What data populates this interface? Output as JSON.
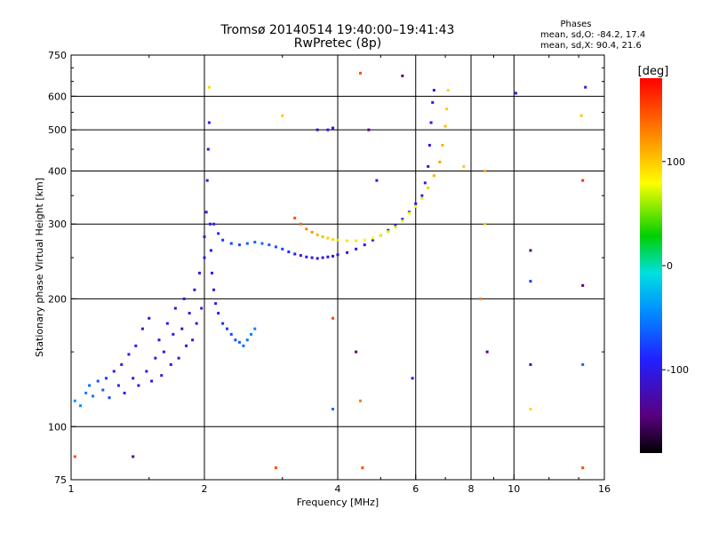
{
  "header": {
    "title_line1": "Tromsø 20140514 19:40:00–19:41:43",
    "title_line2": "RwPretec (8p)",
    "stats_title": "Phases",
    "stats_o": "mean, sd,O: -84.2, 17.4",
    "stats_x": "mean, sd,X: 90.4, 21.6"
  },
  "colorbar": {
    "label": "[deg]",
    "ticks": [
      {
        "value": 100,
        "label": "100"
      },
      {
        "value": 0,
        "label": "0"
      },
      {
        "value": -100,
        "label": "-100"
      }
    ],
    "range": [
      -180,
      180
    ]
  },
  "chart_data": {
    "type": "scatter",
    "title": "Tromsø 20140514 19:40:00–19:41:43",
    "subtitle": "RwPretec (8p)",
    "xlabel": "Frequency [MHz]",
    "ylabel": "Stationary phase Virtual Height [km]",
    "xscale": "log",
    "yscale": "log",
    "xlim": [
      1,
      16
    ],
    "ylim": [
      75,
      750
    ],
    "xticks": [
      {
        "value": 1,
        "label": "1"
      },
      {
        "value": 2,
        "label": "2"
      },
      {
        "value": 4,
        "label": "4"
      },
      {
        "value": 6,
        "label": "6"
      },
      {
        "value": 8,
        "label": "8"
      },
      {
        "value": 10,
        "label": "10"
      },
      {
        "value": 16,
        "label": "16"
      }
    ],
    "yticks": [
      {
        "value": 75,
        "label": "75"
      },
      {
        "value": 100,
        "label": "100"
      },
      {
        "value": 200,
        "label": "200"
      },
      {
        "value": 300,
        "label": "300"
      },
      {
        "value": 400,
        "label": "400"
      },
      {
        "value": 500,
        "label": "500"
      },
      {
        "value": 600,
        "label": "600"
      },
      {
        "value": 750,
        "label": "750"
      }
    ],
    "grid_x": [
      2,
      4,
      6,
      8,
      10
    ],
    "grid_y": [
      100,
      200,
      300,
      400,
      500,
      600
    ],
    "grid": true,
    "colorscale": "rainbow",
    "color_variable": "phase [deg]",
    "points": [
      {
        "x": 1.02,
        "y": 115,
        "c": -40
      },
      {
        "x": 1.05,
        "y": 112,
        "c": -45
      },
      {
        "x": 1.08,
        "y": 120,
        "c": -50
      },
      {
        "x": 1.1,
        "y": 125,
        "c": -60
      },
      {
        "x": 1.12,
        "y": 118,
        "c": -55
      },
      {
        "x": 1.15,
        "y": 128,
        "c": -70
      },
      {
        "x": 1.18,
        "y": 122,
        "c": -65
      },
      {
        "x": 1.2,
        "y": 130,
        "c": -80
      },
      {
        "x": 1.22,
        "y": 117,
        "c": -75
      },
      {
        "x": 1.25,
        "y": 135,
        "c": -90
      },
      {
        "x": 1.28,
        "y": 125,
        "c": -85
      },
      {
        "x": 1.3,
        "y": 140,
        "c": -95
      },
      {
        "x": 1.32,
        "y": 120,
        "c": -90
      },
      {
        "x": 1.35,
        "y": 148,
        "c": -100
      },
      {
        "x": 1.38,
        "y": 130,
        "c": -95
      },
      {
        "x": 1.4,
        "y": 155,
        "c": -100
      },
      {
        "x": 1.42,
        "y": 125,
        "c": -100
      },
      {
        "x": 1.45,
        "y": 170,
        "c": -105
      },
      {
        "x": 1.48,
        "y": 135,
        "c": -100
      },
      {
        "x": 1.5,
        "y": 180,
        "c": -105
      },
      {
        "x": 1.52,
        "y": 128,
        "c": -100
      },
      {
        "x": 1.55,
        "y": 145,
        "c": -100
      },
      {
        "x": 1.58,
        "y": 160,
        "c": -105
      },
      {
        "x": 1.6,
        "y": 132,
        "c": -100
      },
      {
        "x": 1.62,
        "y": 150,
        "c": -105
      },
      {
        "x": 1.65,
        "y": 175,
        "c": -100
      },
      {
        "x": 1.68,
        "y": 140,
        "c": -105
      },
      {
        "x": 1.7,
        "y": 165,
        "c": -100
      },
      {
        "x": 1.72,
        "y": 190,
        "c": -105
      },
      {
        "x": 1.75,
        "y": 145,
        "c": -100
      },
      {
        "x": 1.78,
        "y": 170,
        "c": -105
      },
      {
        "x": 1.8,
        "y": 200,
        "c": -100
      },
      {
        "x": 1.82,
        "y": 155,
        "c": -105
      },
      {
        "x": 1.85,
        "y": 185,
        "c": -100
      },
      {
        "x": 1.88,
        "y": 160,
        "c": -105
      },
      {
        "x": 1.9,
        "y": 210,
        "c": -100
      },
      {
        "x": 1.92,
        "y": 175,
        "c": -105
      },
      {
        "x": 1.95,
        "y": 230,
        "c": -100
      },
      {
        "x": 1.97,
        "y": 190,
        "c": -105
      },
      {
        "x": 2.0,
        "y": 250,
        "c": -100
      },
      {
        "x": 2.0,
        "y": 280,
        "c": -105
      },
      {
        "x": 2.02,
        "y": 320,
        "c": -100
      },
      {
        "x": 2.03,
        "y": 380,
        "c": -105
      },
      {
        "x": 2.04,
        "y": 450,
        "c": -100
      },
      {
        "x": 2.05,
        "y": 520,
        "c": -95
      },
      {
        "x": 2.06,
        "y": 300,
        "c": -100
      },
      {
        "x": 2.07,
        "y": 260,
        "c": -105
      },
      {
        "x": 2.08,
        "y": 230,
        "c": -100
      },
      {
        "x": 2.1,
        "y": 210,
        "c": -100
      },
      {
        "x": 2.12,
        "y": 195,
        "c": -100
      },
      {
        "x": 2.15,
        "y": 185,
        "c": -90
      },
      {
        "x": 2.2,
        "y": 175,
        "c": -85
      },
      {
        "x": 2.25,
        "y": 170,
        "c": -80
      },
      {
        "x": 2.3,
        "y": 165,
        "c": -75
      },
      {
        "x": 2.35,
        "y": 160,
        "c": -70
      },
      {
        "x": 2.4,
        "y": 158,
        "c": -65
      },
      {
        "x": 2.45,
        "y": 155,
        "c": -60
      },
      {
        "x": 2.5,
        "y": 160,
        "c": -55
      },
      {
        "x": 2.55,
        "y": 165,
        "c": -50
      },
      {
        "x": 2.6,
        "y": 170,
        "c": -50
      },
      {
        "x": 2.1,
        "y": 300,
        "c": -90
      },
      {
        "x": 2.15,
        "y": 285,
        "c": -85
      },
      {
        "x": 2.2,
        "y": 275,
        "c": -80
      },
      {
        "x": 2.3,
        "y": 270,
        "c": -75
      },
      {
        "x": 2.4,
        "y": 268,
        "c": -70
      },
      {
        "x": 2.5,
        "y": 270,
        "c": -65
      },
      {
        "x": 2.6,
        "y": 272,
        "c": -60
      },
      {
        "x": 2.7,
        "y": 270,
        "c": -60
      },
      {
        "x": 2.8,
        "y": 268,
        "c": -65
      },
      {
        "x": 2.9,
        "y": 265,
        "c": -70
      },
      {
        "x": 3.0,
        "y": 262,
        "c": -75
      },
      {
        "x": 3.1,
        "y": 258,
        "c": -85
      },
      {
        "x": 3.2,
        "y": 255,
        "c": -95
      },
      {
        "x": 3.3,
        "y": 253,
        "c": -100
      },
      {
        "x": 3.4,
        "y": 251,
        "c": -105
      },
      {
        "x": 3.5,
        "y": 250,
        "c": -110
      },
      {
        "x": 3.6,
        "y": 249,
        "c": -110
      },
      {
        "x": 3.7,
        "y": 250,
        "c": -110
      },
      {
        "x": 3.8,
        "y": 251,
        "c": -110
      },
      {
        "x": 3.9,
        "y": 252,
        "c": -110
      },
      {
        "x": 4.0,
        "y": 254,
        "c": -110
      },
      {
        "x": 4.2,
        "y": 257,
        "c": -110
      },
      {
        "x": 4.4,
        "y": 262,
        "c": -108
      },
      {
        "x": 4.6,
        "y": 268,
        "c": -105
      },
      {
        "x": 4.8,
        "y": 275,
        "c": -100
      },
      {
        "x": 5.0,
        "y": 282,
        "c": -100
      },
      {
        "x": 5.2,
        "y": 290,
        "c": -100
      },
      {
        "x": 5.4,
        "y": 298,
        "c": -100
      },
      {
        "x": 5.6,
        "y": 308,
        "c": -100
      },
      {
        "x": 5.8,
        "y": 320,
        "c": -100
      },
      {
        "x": 6.0,
        "y": 335,
        "c": -100
      },
      {
        "x": 6.2,
        "y": 350,
        "c": -100
      },
      {
        "x": 6.3,
        "y": 375,
        "c": -100
      },
      {
        "x": 6.4,
        "y": 410,
        "c": -100
      },
      {
        "x": 6.45,
        "y": 460,
        "c": -100
      },
      {
        "x": 6.5,
        "y": 520,
        "c": -100
      },
      {
        "x": 6.55,
        "y": 580,
        "c": -100
      },
      {
        "x": 6.6,
        "y": 620,
        "c": -100
      },
      {
        "x": 3.2,
        "y": 310,
        "c": 150
      },
      {
        "x": 3.3,
        "y": 300,
        "c": 140
      },
      {
        "x": 3.4,
        "y": 292,
        "c": 130
      },
      {
        "x": 3.5,
        "y": 287,
        "c": 120
      },
      {
        "x": 3.6,
        "y": 283,
        "c": 110
      },
      {
        "x": 3.7,
        "y": 280,
        "c": 105
      },
      {
        "x": 3.8,
        "y": 278,
        "c": 100
      },
      {
        "x": 3.9,
        "y": 276,
        "c": 95
      },
      {
        "x": 4.0,
        "y": 275,
        "c": 95
      },
      {
        "x": 4.2,
        "y": 274,
        "c": 90
      },
      {
        "x": 4.4,
        "y": 274,
        "c": 90
      },
      {
        "x": 4.6,
        "y": 275,
        "c": 85
      },
      {
        "x": 4.8,
        "y": 278,
        "c": 80
      },
      {
        "x": 5.0,
        "y": 282,
        "c": 75
      },
      {
        "x": 5.2,
        "y": 288,
        "c": 70
      },
      {
        "x": 5.4,
        "y": 295,
        "c": 70
      },
      {
        "x": 5.6,
        "y": 305,
        "c": 75
      },
      {
        "x": 5.8,
        "y": 318,
        "c": 80
      },
      {
        "x": 6.0,
        "y": 330,
        "c": 85
      },
      {
        "x": 6.2,
        "y": 345,
        "c": 90
      },
      {
        "x": 6.4,
        "y": 365,
        "c": 100
      },
      {
        "x": 6.6,
        "y": 390,
        "c": 110
      },
      {
        "x": 6.8,
        "y": 420,
        "c": 115
      },
      {
        "x": 6.9,
        "y": 460,
        "c": 110
      },
      {
        "x": 7.0,
        "y": 510,
        "c": 105
      },
      {
        "x": 7.05,
        "y": 560,
        "c": 100
      },
      {
        "x": 7.1,
        "y": 620,
        "c": 95
      },
      {
        "x": 1.02,
        "y": 85,
        "c": 150
      },
      {
        "x": 1.38,
        "y": 85,
        "c": -140
      },
      {
        "x": 2.9,
        "y": 80,
        "c": 150
      },
      {
        "x": 4.55,
        "y": 80,
        "c": 150
      },
      {
        "x": 2.05,
        "y": 630,
        "c": 95
      },
      {
        "x": 3.0,
        "y": 540,
        "c": 100
      },
      {
        "x": 4.5,
        "y": 680,
        "c": 150
      },
      {
        "x": 5.6,
        "y": 670,
        "c": -140
      },
      {
        "x": 10.1,
        "y": 610,
        "c": -100
      },
      {
        "x": 10.9,
        "y": 260,
        "c": -140
      },
      {
        "x": 10.9,
        "y": 220,
        "c": -80
      },
      {
        "x": 10.9,
        "y": 140,
        "c": -120
      },
      {
        "x": 10.9,
        "y": 110,
        "c": 95
      },
      {
        "x": 14.5,
        "y": 630,
        "c": -100
      },
      {
        "x": 14.2,
        "y": 540,
        "c": 100
      },
      {
        "x": 14.3,
        "y": 380,
        "c": 160
      },
      {
        "x": 14.3,
        "y": 215,
        "c": -140
      },
      {
        "x": 14.3,
        "y": 140,
        "c": -60
      },
      {
        "x": 14.3,
        "y": 80,
        "c": 150
      },
      {
        "x": 8.4,
        "y": 200,
        "c": 130
      },
      {
        "x": 8.7,
        "y": 150,
        "c": -140
      },
      {
        "x": 3.9,
        "y": 180,
        "c": 150
      },
      {
        "x": 4.4,
        "y": 150,
        "c": -140
      },
      {
        "x": 3.9,
        "y": 110,
        "c": -60
      },
      {
        "x": 4.5,
        "y": 115,
        "c": 130
      },
      {
        "x": 5.9,
        "y": 130,
        "c": -100
      },
      {
        "x": 4.9,
        "y": 380,
        "c": -100
      },
      {
        "x": 4.7,
        "y": 500,
        "c": -140
      },
      {
        "x": 3.6,
        "y": 500,
        "c": -110
      },
      {
        "x": 3.8,
        "y": 500,
        "c": -110
      },
      {
        "x": 3.9,
        "y": 505,
        "c": -110
      },
      {
        "x": 8.6,
        "y": 400,
        "c": 110
      },
      {
        "x": 7.7,
        "y": 410,
        "c": 100
      },
      {
        "x": 8.6,
        "y": 300,
        "c": 100
      }
    ]
  }
}
